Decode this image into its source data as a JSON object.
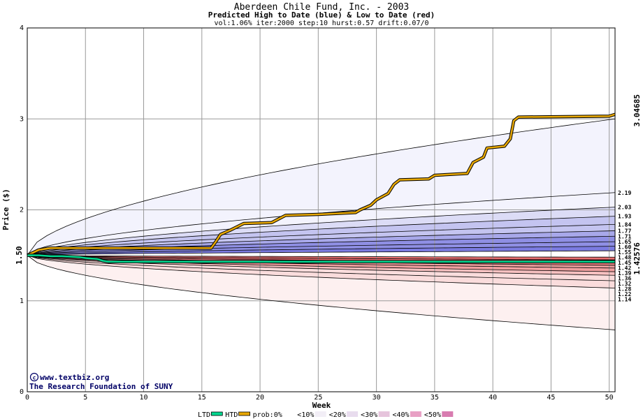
{
  "chart_data": {
    "type": "line",
    "title": "Aberdeen Chile Fund, Inc. - 2003",
    "subtitle": "Predicted High to Date (blue) &  Low to Date (red)",
    "params": "vol:1.06% iter:2000 step:10 hurst:0.57 drift:0.07/0",
    "xlabel": "Week",
    "ylabel": "Price ($)",
    "xlim": [
      0,
      50.5
    ],
    "ylim": [
      0,
      4
    ],
    "x_ticks": [
      0,
      5,
      10,
      15,
      20,
      25,
      30,
      35,
      40,
      45,
      50
    ],
    "y_ticks": [
      0,
      1,
      2,
      3,
      4
    ],
    "grid": true,
    "start_label": "1.50",
    "start_value": 1.5,
    "htd_end_label": "3.04685",
    "htd_end_value": 3.04685,
    "ltd_end_label": "1.42576",
    "ltd_end_value": 1.42576,
    "right_labels": [
      "2.19",
      "2.03",
      "1.93",
      "1.84",
      "1.77",
      "1.71",
      "1.65",
      "1.60",
      "1.55",
      "1.48",
      "1.45",
      "1.42",
      "1.39",
      "1.36",
      "1.32",
      "1.28",
      "1.22",
      "1.14"
    ],
    "right_values": [
      2.19,
      2.03,
      1.93,
      1.84,
      1.77,
      1.71,
      1.65,
      1.6,
      1.55,
      1.48,
      1.45,
      1.42,
      1.39,
      1.36,
      1.32,
      1.28,
      1.22,
      1.14
    ],
    "outer_upper_end": 3.0,
    "outer_lower_end": 0.68,
    "band_colors_upper": [
      "#f3f3fd",
      "#dcdcf6",
      "#c4c4f0",
      "#a8a8ea",
      "#8f8fe4",
      "#7b7be0"
    ],
    "band_colors_lower": [
      "#fdf0f0",
      "#fadcdc",
      "#f6c0c0",
      "#f0a0a0",
      "#ea8484",
      "#e87070"
    ],
    "series": [
      {
        "name": "HTD",
        "color": "#e8a800",
        "points": [
          [
            0,
            1.5
          ],
          [
            0.5,
            1.53
          ],
          [
            1,
            1.56
          ],
          [
            2,
            1.58
          ],
          [
            5,
            1.58
          ],
          [
            10,
            1.58
          ],
          [
            15.8,
            1.58
          ],
          [
            16.2,
            1.65
          ],
          [
            16.6,
            1.73
          ],
          [
            17.5,
            1.78
          ],
          [
            18.6,
            1.85
          ],
          [
            21,
            1.86
          ],
          [
            21.6,
            1.9
          ],
          [
            22.2,
            1.94
          ],
          [
            25,
            1.95
          ],
          [
            28.2,
            1.97
          ],
          [
            28.6,
            2.0
          ],
          [
            29.5,
            2.05
          ],
          [
            30,
            2.11
          ],
          [
            31,
            2.18
          ],
          [
            31.5,
            2.28
          ],
          [
            32,
            2.33
          ],
          [
            34.5,
            2.34
          ],
          [
            35,
            2.38
          ],
          [
            37.8,
            2.4
          ],
          [
            38.3,
            2.52
          ],
          [
            39.2,
            2.58
          ],
          [
            39.5,
            2.68
          ],
          [
            41,
            2.7
          ],
          [
            41.5,
            2.78
          ],
          [
            41.8,
            2.98
          ],
          [
            42.2,
            3.02
          ],
          [
            50,
            3.03
          ],
          [
            50.5,
            3.05
          ]
        ]
      },
      {
        "name": "LTD",
        "color": "#00d890",
        "points": [
          [
            0,
            1.5
          ],
          [
            1,
            1.5
          ],
          [
            2,
            1.49
          ],
          [
            3,
            1.49
          ],
          [
            4.5,
            1.48
          ],
          [
            5,
            1.47
          ],
          [
            6,
            1.46
          ],
          [
            6.5,
            1.44
          ],
          [
            7,
            1.43
          ],
          [
            10,
            1.43
          ],
          [
            20,
            1.43
          ],
          [
            30,
            1.43
          ],
          [
            40,
            1.43
          ],
          [
            50.5,
            1.43
          ]
        ]
      }
    ],
    "legend": [
      "LTD",
      "HTD",
      "prob:0%",
      "<10%",
      "<20%",
      "<30%",
      "<40%",
      "<50%"
    ]
  },
  "credit": {
    "site": "www.textbiz.org",
    "org": "The Research Foundation of SUNY"
  }
}
